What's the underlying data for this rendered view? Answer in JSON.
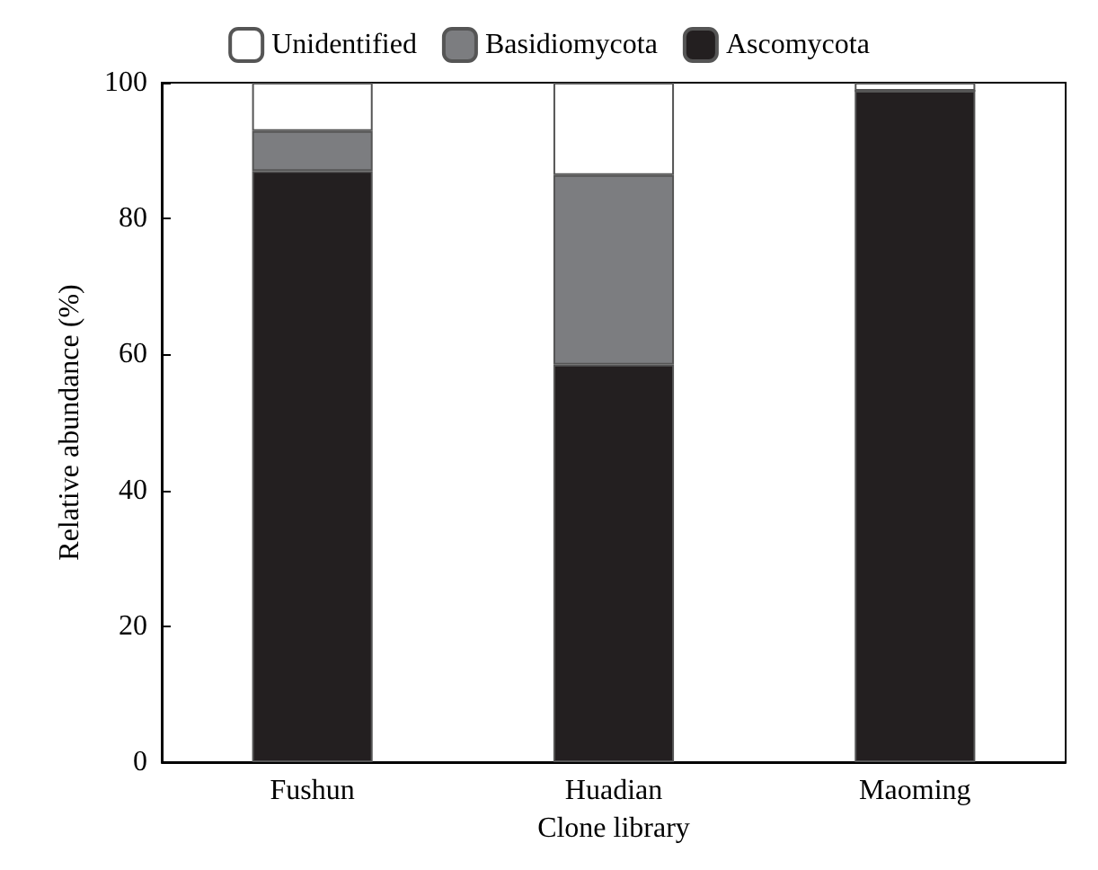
{
  "chart_data": {
    "type": "bar",
    "stacked": true,
    "xlabel": "Clone library",
    "ylabel": "Relative abundance (%)",
    "categories": [
      "Fushun",
      "Huadian",
      "Maoming"
    ],
    "series": [
      {
        "name": "Ascomycota",
        "color": "#231f20",
        "values": [
          87.0,
          58.5,
          98.8
        ]
      },
      {
        "name": "Basidiomycota",
        "color": "#7c7d80",
        "values": [
          5.9,
          27.9,
          0
        ]
      },
      {
        "name": "Unidentified",
        "color": "#ffffff",
        "values": [
          7.1,
          13.6,
          1.2
        ]
      }
    ],
    "ylim": [
      0,
      100
    ],
    "yticks": [
      0,
      20,
      40,
      60,
      80,
      100
    ],
    "grid": false,
    "legend": "top"
  }
}
